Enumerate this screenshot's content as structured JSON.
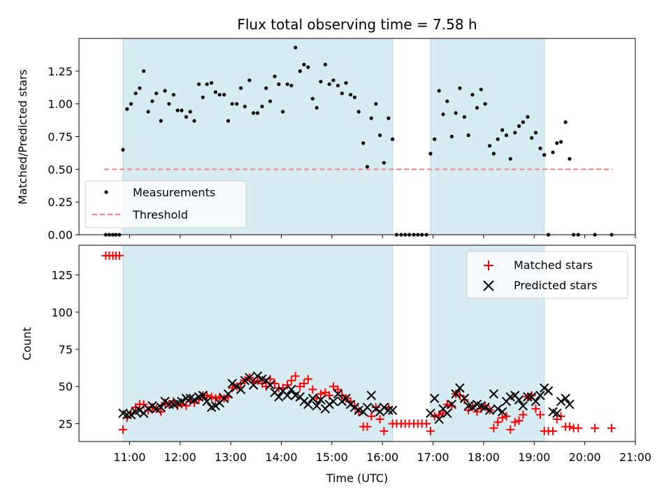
{
  "chart_data": [
    {
      "type": "scatter",
      "title": "Flux total observing time = 7.58 h",
      "ylabel": "Matched/Predicted stars",
      "xlim": [
        10.0,
        21.0
      ],
      "ylim": [
        0.0,
        1.5
      ],
      "yticks": [
        "0.00",
        "0.25",
        "0.50",
        "0.75",
        "1.00",
        "1.25"
      ],
      "grid": false,
      "legend_position": "lower-left",
      "shaded_intervals_hours": [
        [
          10.87,
          16.2
        ],
        [
          16.95,
          19.2
        ]
      ],
      "shade_color": "#add8e6",
      "series": [
        {
          "name": "Measurements",
          "kind": "scatter",
          "color": "#000000",
          "x": [
            10.53,
            10.6,
            10.67,
            10.73,
            10.8,
            10.87,
            10.95,
            11.03,
            11.12,
            11.2,
            11.28,
            11.37,
            11.45,
            11.53,
            11.62,
            11.7,
            11.78,
            11.87,
            11.95,
            12.03,
            12.12,
            12.2,
            12.28,
            12.37,
            12.45,
            12.53,
            12.62,
            12.7,
            12.78,
            12.87,
            12.95,
            13.03,
            13.12,
            13.2,
            13.28,
            13.37,
            13.45,
            13.53,
            13.62,
            13.7,
            13.78,
            13.87,
            13.95,
            14.03,
            14.12,
            14.2,
            14.28,
            14.37,
            14.45,
            14.53,
            14.62,
            14.7,
            14.78,
            14.87,
            14.95,
            15.03,
            15.12,
            15.2,
            15.28,
            15.37,
            15.45,
            15.53,
            15.62,
            15.7,
            15.78,
            15.87,
            15.95,
            16.03,
            16.12,
            16.2,
            16.28,
            16.37,
            16.45,
            16.53,
            16.62,
            16.7,
            16.78,
            16.87,
            16.95,
            17.03,
            17.12,
            17.2,
            17.28,
            17.37,
            17.45,
            17.53,
            17.62,
            17.7,
            17.78,
            17.87,
            17.95,
            18.03,
            18.12,
            18.2,
            18.28,
            18.37,
            18.45,
            18.53,
            18.62,
            18.7,
            18.78,
            18.87,
            18.95,
            19.03,
            19.12,
            19.2,
            19.28,
            19.37,
            19.45,
            19.53,
            19.62,
            19.7,
            19.78,
            19.87,
            20.2,
            20.53
          ],
          "y": [
            0.0,
            0.0,
            0.0,
            0.0,
            0.0,
            0.65,
            0.96,
            1.0,
            1.08,
            1.12,
            1.25,
            0.94,
            1.02,
            1.08,
            0.87,
            1.1,
            1.0,
            1.07,
            0.95,
            0.95,
            0.9,
            0.94,
            0.87,
            1.15,
            1.05,
            1.15,
            1.16,
            1.09,
            1.07,
            1.07,
            0.87,
            1.0,
            1.0,
            1.12,
            0.98,
            1.18,
            0.93,
            0.93,
            0.98,
            1.12,
            1.02,
            1.21,
            1.15,
            0.94,
            1.15,
            1.14,
            1.43,
            1.25,
            1.3,
            1.28,
            1.04,
            0.97,
            1.17,
            1.3,
            1.15,
            1.18,
            1.14,
            1.08,
            1.16,
            1.07,
            1.05,
            0.94,
            0.7,
            0.52,
            0.89,
            1.0,
            0.76,
            0.55,
            0.89,
            0.73,
            0.0,
            0.0,
            0.0,
            0.0,
            0.0,
            0.0,
            0.0,
            0.0,
            0.62,
            0.73,
            1.1,
            0.92,
            1.02,
            0.75,
            0.93,
            1.12,
            0.9,
            0.76,
            1.07,
            0.97,
            1.11,
            1.0,
            0.68,
            0.62,
            0.73,
            0.8,
            0.76,
            0.58,
            0.78,
            0.83,
            0.86,
            0.9,
            0.74,
            0.78,
            0.66,
            0.61,
            0.0,
            0.63,
            0.7,
            0.71,
            0.86,
            0.58,
            0.0,
            0.0,
            0.0,
            0.0
          ]
        },
        {
          "name": "Threshold",
          "kind": "line",
          "color": "#f08080",
          "dashed": true,
          "x": [
            10.5,
            20.55
          ],
          "y": [
            0.5,
            0.5
          ]
        }
      ]
    },
    {
      "type": "scatter",
      "title": "",
      "xlabel": "Time (UTC)",
      "ylabel": "Count",
      "xlim": [
        10.0,
        21.0
      ],
      "ylim": [
        13,
        145
      ],
      "xtick_hours": [
        11,
        12,
        13,
        14,
        15,
        16,
        17,
        18,
        19,
        20,
        21
      ],
      "xticks": [
        "11:00",
        "12:00",
        "13:00",
        "14:00",
        "15:00",
        "16:00",
        "17:00",
        "18:00",
        "19:00",
        "20:00",
        "21:00"
      ],
      "yticks": [
        "25",
        "50",
        "75",
        "100",
        "125"
      ],
      "ytick_values": [
        25,
        50,
        75,
        100,
        125
      ],
      "grid": false,
      "legend_position": "upper-right",
      "series": [
        {
          "name": "Matched stars",
          "kind": "scatter",
          "marker": "+",
          "color": "#ff0000",
          "x": [
            10.53,
            10.6,
            10.67,
            10.73,
            10.8,
            10.87,
            10.95,
            11.03,
            11.12,
            11.2,
            11.28,
            11.37,
            11.45,
            11.53,
            11.62,
            11.7,
            11.78,
            11.87,
            11.95,
            12.03,
            12.12,
            12.2,
            12.28,
            12.37,
            12.45,
            12.53,
            12.62,
            12.7,
            12.78,
            12.87,
            12.95,
            13.03,
            13.12,
            13.2,
            13.28,
            13.37,
            13.45,
            13.53,
            13.62,
            13.7,
            13.78,
            13.87,
            13.95,
            14.03,
            14.12,
            14.2,
            14.28,
            14.37,
            14.45,
            14.53,
            14.62,
            14.7,
            14.78,
            14.87,
            14.95,
            15.03,
            15.12,
            15.2,
            15.28,
            15.37,
            15.45,
            15.53,
            15.62,
            15.7,
            15.78,
            15.87,
            15.95,
            16.03,
            16.12,
            16.2,
            16.28,
            16.37,
            16.45,
            16.53,
            16.62,
            16.7,
            16.78,
            16.87,
            16.95,
            17.03,
            17.12,
            17.2,
            17.28,
            17.37,
            17.45,
            17.53,
            17.62,
            17.7,
            17.78,
            17.87,
            17.95,
            18.03,
            18.12,
            18.2,
            18.28,
            18.37,
            18.45,
            18.53,
            18.62,
            18.7,
            18.78,
            18.87,
            18.95,
            19.03,
            19.12,
            19.2,
            19.28,
            19.37,
            19.45,
            19.53,
            19.62,
            19.7,
            19.78,
            19.87,
            20.2,
            20.53
          ],
          "y": [
            138,
            138,
            138,
            138,
            138,
            21,
            29,
            32,
            36,
            38,
            38,
            34,
            36,
            35,
            33,
            39,
            38,
            40,
            37,
            38,
            37,
            40,
            39,
            41,
            44,
            44,
            43,
            42,
            43,
            42,
            43,
            49,
            50,
            52,
            54,
            56,
            53,
            54,
            52,
            50,
            55,
            52,
            49,
            49,
            51,
            54,
            57,
            50,
            52,
            55,
            48,
            42,
            45,
            46,
            44,
            50,
            48,
            44,
            42,
            40,
            37,
            33,
            23,
            23,
            30,
            36,
            28,
            20,
            36,
            25,
            25,
            25,
            25,
            25,
            25,
            25,
            25,
            25,
            20,
            30,
            31,
            32,
            38,
            37,
            45,
            44,
            41,
            34,
            37,
            33,
            35,
            37,
            34,
            22,
            26,
            29,
            30,
            21,
            26,
            27,
            31,
            43,
            44,
            35,
            31,
            20,
            20,
            20,
            28,
            30,
            23,
            23,
            22,
            22,
            22,
            22
          ]
        },
        {
          "name": "Predicted stars",
          "kind": "scatter",
          "marker": "x",
          "color": "#000000",
          "x": [
            10.87,
            10.95,
            11.03,
            11.12,
            11.2,
            11.28,
            11.37,
            11.45,
            11.53,
            11.62,
            11.7,
            11.78,
            11.87,
            11.95,
            12.03,
            12.12,
            12.2,
            12.28,
            12.37,
            12.45,
            12.53,
            12.62,
            12.7,
            12.78,
            12.87,
            12.95,
            13.03,
            13.12,
            13.2,
            13.28,
            13.37,
            13.45,
            13.53,
            13.62,
            13.7,
            13.78,
            13.87,
            13.95,
            14.03,
            14.12,
            14.2,
            14.28,
            14.37,
            14.45,
            14.53,
            14.62,
            14.7,
            14.78,
            14.87,
            14.95,
            15.03,
            15.12,
            15.2,
            15.28,
            15.37,
            15.45,
            15.53,
            15.62,
            15.7,
            15.78,
            15.87,
            15.95,
            16.03,
            16.12,
            16.2,
            16.95,
            17.03,
            17.12,
            17.2,
            17.28,
            17.37,
            17.45,
            17.53,
            17.62,
            17.7,
            17.78,
            17.87,
            17.95,
            18.03,
            18.12,
            18.2,
            18.28,
            18.37,
            18.45,
            18.53,
            18.62,
            18.7,
            18.78,
            18.87,
            18.95,
            19.03,
            19.12,
            19.2,
            19.28,
            19.37,
            19.45,
            19.53,
            19.62,
            19.7
          ],
          "y": [
            32,
            31,
            31,
            33,
            34,
            32,
            35,
            37,
            35,
            36,
            40,
            38,
            38,
            39,
            40,
            42,
            42,
            41,
            43,
            44,
            40,
            36,
            37,
            39,
            42,
            45,
            52,
            50,
            48,
            54,
            56,
            51,
            57,
            55,
            54,
            51,
            46,
            43,
            47,
            44,
            48,
            44,
            43,
            40,
            38,
            42,
            37,
            41,
            35,
            38,
            40,
            45,
            40,
            42,
            38,
            36,
            34,
            33,
            36,
            44,
            35,
            33,
            36,
            34,
            34,
            32,
            42,
            28,
            35,
            32,
            38,
            45,
            49,
            42,
            37,
            36,
            38,
            37,
            36,
            34,
            45,
            35,
            33,
            40,
            43,
            44,
            41,
            37,
            43,
            43,
            40,
            44,
            49,
            47,
            33,
            32,
            40,
            42,
            38
          ]
        }
      ]
    }
  ]
}
